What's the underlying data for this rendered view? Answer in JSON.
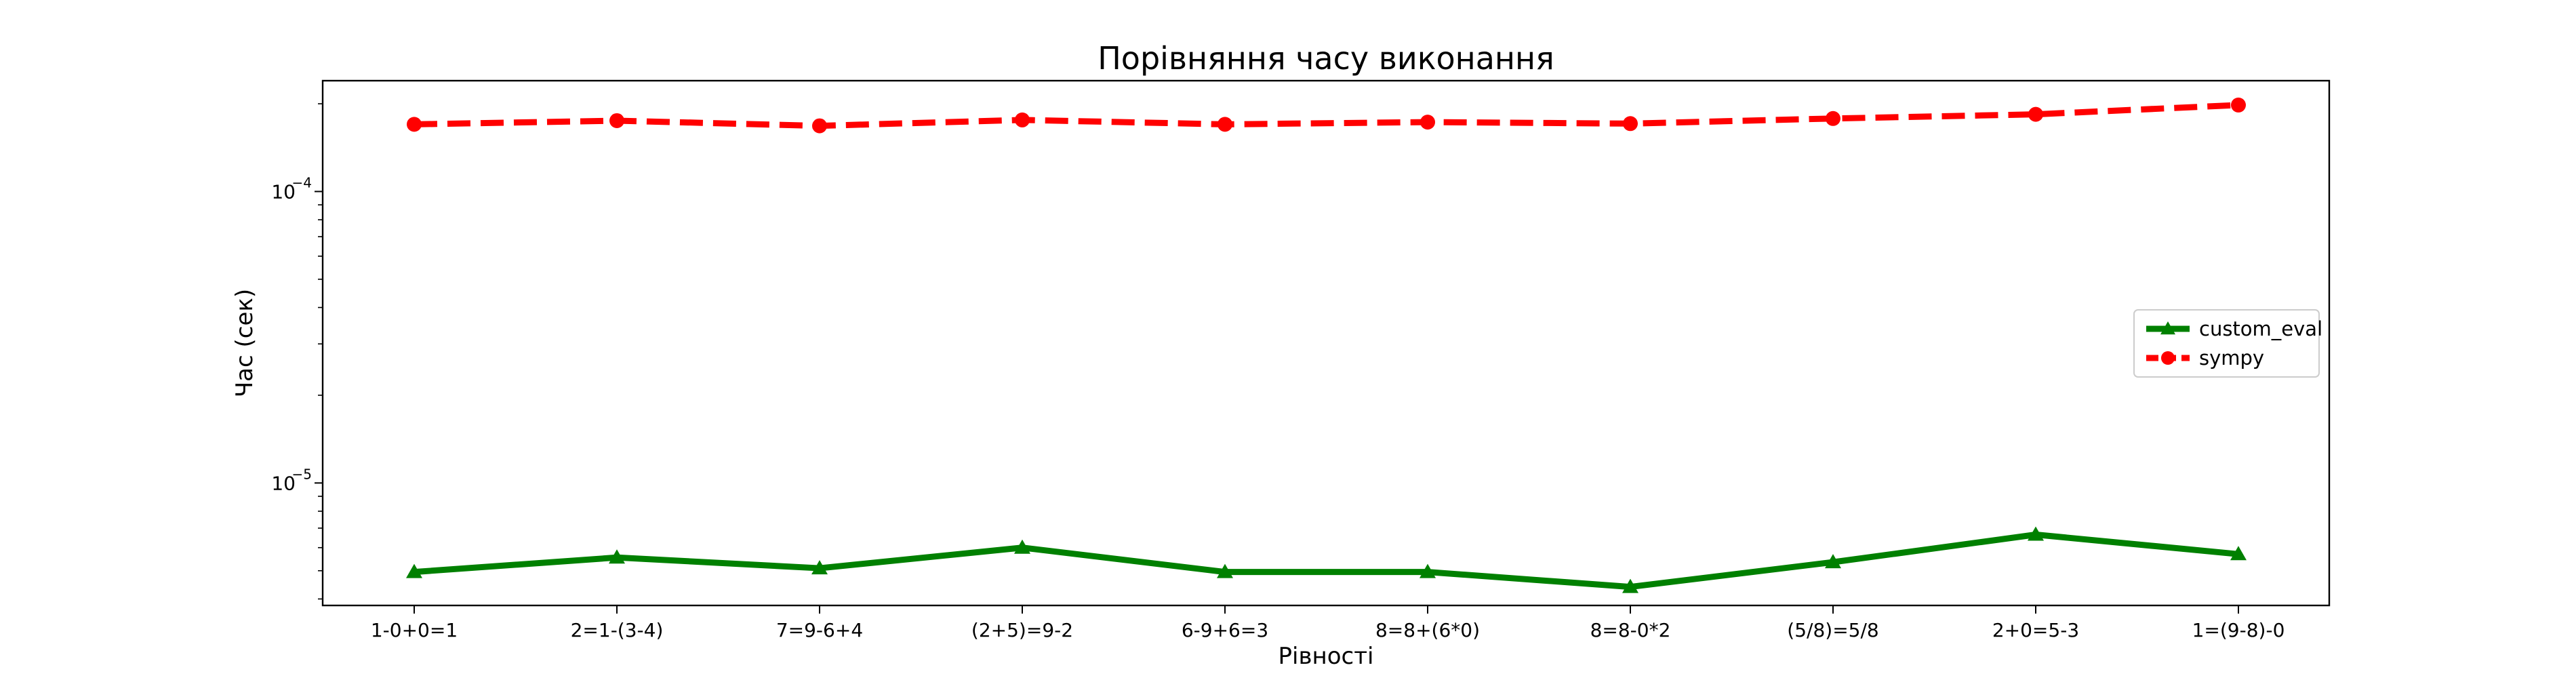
{
  "chart_data": {
    "type": "line",
    "title": "Порівняння часу виконання",
    "xlabel": "Рівності",
    "ylabel": "Час (сек)",
    "yscale": "log",
    "ylim": [
      3.8e-06,
      0.00024
    ],
    "grid": false,
    "legend_position": "center-right",
    "categories": [
      "1-0+0=1",
      "2=1-(3-4)",
      "7=9-6+4",
      "(2+5)=9-2",
      "6-9+6=3",
      "8=8+(6*0)",
      "8=8-0*2",
      "(5/8)=5/8",
      "2+0=5-3",
      "1=(9-8)-0"
    ],
    "series": [
      {
        "name": "custom_eval",
        "color": "#008000",
        "marker": "triangle",
        "linestyle": "solid",
        "values": [
          4.95e-06,
          5.55e-06,
          5.1e-06,
          6e-06,
          4.95e-06,
          4.95e-06,
          4.4e-06,
          5.35e-06,
          6.65e-06,
          5.7e-06
        ]
      },
      {
        "name": "sympy",
        "color": "#ff0000",
        "marker": "circle",
        "linestyle": "dashed",
        "values": [
          0.00017,
          0.000175,
          0.000168,
          0.000176,
          0.00017,
          0.000173,
          0.000171,
          0.000178,
          0.000184,
          0.000198
        ]
      }
    ],
    "y_major_ticks": [
      {
        "value": 0.0001,
        "label_base": "10",
        "label_exp": "−4"
      },
      {
        "value": 1e-05,
        "label_base": "10",
        "label_exp": "−5"
      }
    ]
  }
}
